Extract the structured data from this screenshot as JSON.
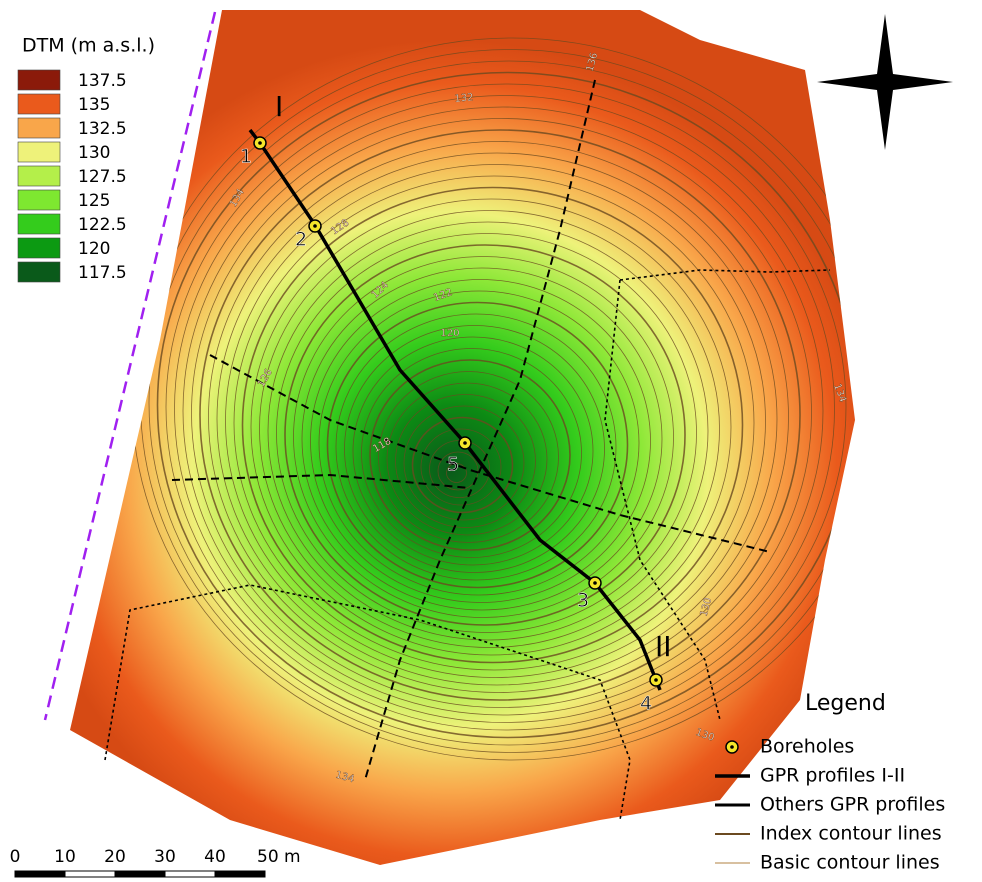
{
  "dtm_legend": {
    "title": "DTM (m a.s.l.)",
    "entries": [
      {
        "label": "137.5",
        "color": "#8b1a0a"
      },
      {
        "label": "135",
        "color": "#ea5a1c"
      },
      {
        "label": "132.5",
        "color": "#f9a64a"
      },
      {
        "label": "130",
        "color": "#eef27a"
      },
      {
        "label": "127.5",
        "color": "#b4ef4a"
      },
      {
        "label": "125",
        "color": "#7ee830"
      },
      {
        "label": "122.5",
        "color": "#34cc1c"
      },
      {
        "label": "120",
        "color": "#0c9a12"
      },
      {
        "label": "117.5",
        "color": "#0a5a1a"
      }
    ]
  },
  "profile_labels": [
    "I",
    "II"
  ],
  "boreholes": [
    "1",
    "2",
    "3",
    "4",
    "5"
  ],
  "contour_labels": [
    "132",
    "136",
    "134",
    "128",
    "124",
    "122",
    "120",
    "126",
    "118",
    "134",
    "130",
    "130",
    "134"
  ],
  "legend": {
    "title": "Legend",
    "items": [
      "Boreholes",
      "GPR profiles I-II",
      "Others GPR profiles",
      "Index contour lines",
      "Basic contour lines"
    ]
  },
  "scale_bar": [
    "0",
    "10",
    "20",
    "30",
    "40",
    "50 m"
  ]
}
